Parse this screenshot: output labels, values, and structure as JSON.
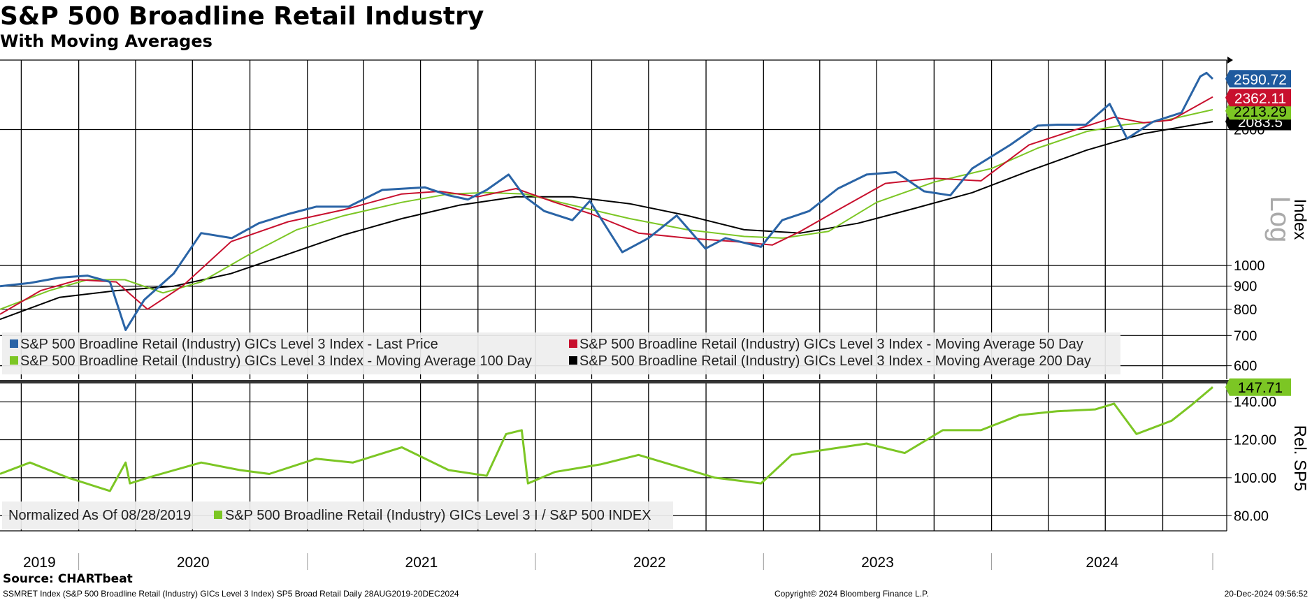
{
  "title": "S&P 500 Broadline Retail Industry",
  "subtitle": "With Moving Averages",
  "source": "Source: CHARTbeat",
  "footer": {
    "left": "SSMRET Index (S&P 500 Broadline Retail (Industry) GICs Level 3 Index) SP5 Broad Retail  Daily 28AUG2019-20DEC2024",
    "center": "Copyright© 2024 Bloomberg Finance L.P.",
    "right": "20-Dec-2024 09:56:52"
  },
  "chart_data": [
    {
      "type": "line",
      "panel": "upper",
      "scale": "log",
      "ylabel": "Index",
      "scale_label": "Log",
      "ylim": [
        560,
        2850
      ],
      "yticks": [
        600,
        700,
        800,
        900,
        1000,
        2000
      ],
      "grid": true,
      "legend_position": "bottom-left",
      "x_range": [
        "2019-08-28",
        "2024-12-20"
      ],
      "x_tick_labels": [
        "2019",
        "2020",
        "2021",
        "2022",
        "2023",
        "2024"
      ],
      "series": [
        {
          "name": "S&P 500 Broadline Retail (Industry) GICs Level 3 Index - Last Price",
          "color": "#2a64a6",
          "last_label": "2590.72",
          "label_color": "#1f5a9e",
          "x": [
            "2019-08-28",
            "2019-10-15",
            "2019-12-01",
            "2020-01-15",
            "2020-02-20",
            "2020-03-16",
            "2020-04-15",
            "2020-06-01",
            "2020-07-15",
            "2020-09-02",
            "2020-10-15",
            "2020-12-01",
            "2021-01-15",
            "2021-03-08",
            "2021-05-01",
            "2021-07-08",
            "2021-08-15",
            "2021-09-15",
            "2021-10-15",
            "2021-11-19",
            "2021-12-15",
            "2022-01-15",
            "2022-03-01",
            "2022-03-29",
            "2022-05-20",
            "2022-07-01",
            "2022-08-15",
            "2022-09-30",
            "2022-11-01",
            "2022-12-28",
            "2023-01-31",
            "2023-03-15",
            "2023-04-30",
            "2023-06-15",
            "2023-08-01",
            "2023-09-15",
            "2023-10-27",
            "2023-12-01",
            "2024-01-31",
            "2024-03-15",
            "2024-04-15",
            "2024-05-31",
            "2024-07-08",
            "2024-08-05",
            "2024-09-15",
            "2024-10-31",
            "2024-11-30",
            "2024-12-10",
            "2024-12-20"
          ],
          "values": [
            900,
            915,
            940,
            950,
            920,
            720,
            840,
            960,
            1180,
            1150,
            1240,
            1300,
            1350,
            1350,
            1470,
            1490,
            1430,
            1400,
            1470,
            1590,
            1420,
            1320,
            1260,
            1390,
            1070,
            1150,
            1290,
            1090,
            1150,
            1100,
            1260,
            1320,
            1480,
            1590,
            1610,
            1460,
            1430,
            1640,
            1850,
            2040,
            2050,
            2050,
            2280,
            1910,
            2080,
            2180,
            2620,
            2670,
            2590
          ]
        },
        {
          "name": "S&P 500 Broadline Retail (Industry) GICs Level 3 Index - Moving Average 50 Day",
          "color": "#c8102e",
          "last_label": "2362.11",
          "label_color": "#c8102e",
          "x": [
            "2019-08-28",
            "2019-11-01",
            "2020-01-01",
            "2020-03-01",
            "2020-04-20",
            "2020-06-15",
            "2020-09-01",
            "2020-12-01",
            "2021-03-01",
            "2021-06-01",
            "2021-08-01",
            "2021-10-01",
            "2021-12-01",
            "2022-02-01",
            "2022-04-01",
            "2022-06-15",
            "2022-09-01",
            "2022-11-15",
            "2023-01-15",
            "2023-03-01",
            "2023-05-01",
            "2023-07-15",
            "2023-10-01",
            "2023-12-15",
            "2024-03-01",
            "2024-05-15",
            "2024-07-15",
            "2024-09-01",
            "2024-10-15",
            "2024-12-20"
          ],
          "values": [
            780,
            880,
            930,
            920,
            800,
            900,
            1130,
            1250,
            1330,
            1440,
            1460,
            1420,
            1480,
            1380,
            1300,
            1180,
            1150,
            1130,
            1110,
            1190,
            1330,
            1520,
            1560,
            1540,
            1850,
            2000,
            2130,
            2070,
            2100,
            2362
          ]
        },
        {
          "name": "S&P 500 Broadline Retail (Industry) GICs Level 3 Index - Moving Average 100 Day",
          "color": "#7cc624",
          "last_label": "2213.29",
          "label_color": "#7cc624",
          "x": [
            "2019-08-28",
            "2019-11-15",
            "2020-01-15",
            "2020-03-15",
            "2020-05-15",
            "2020-07-15",
            "2020-10-01",
            "2020-12-15",
            "2021-03-01",
            "2021-06-01",
            "2021-08-15",
            "2021-10-15",
            "2021-12-15",
            "2022-03-01",
            "2022-06-01",
            "2022-09-01",
            "2022-12-01",
            "2023-02-01",
            "2023-04-15",
            "2023-07-01",
            "2023-10-01",
            "2024-01-01",
            "2024-03-15",
            "2024-06-01",
            "2024-08-01",
            "2024-10-01",
            "2024-12-20"
          ],
          "values": [
            800,
            880,
            930,
            930,
            870,
            920,
            1060,
            1200,
            1290,
            1380,
            1440,
            1450,
            1440,
            1360,
            1270,
            1200,
            1160,
            1150,
            1190,
            1380,
            1530,
            1640,
            1820,
            1980,
            2050,
            2090,
            2213
          ]
        },
        {
          "name": "S&P 500 Broadline Retail (Industry) GICs Level 3 Index - Moving Average 200 Day",
          "color": "#000000",
          "last_label": "2083.5",
          "label_color": "#000000",
          "x": [
            "2019-08-28",
            "2019-12-01",
            "2020-03-01",
            "2020-06-01",
            "2020-09-01",
            "2020-12-01",
            "2021-03-01",
            "2021-06-01",
            "2021-09-01",
            "2021-12-01",
            "2022-03-01",
            "2022-06-01",
            "2022-09-01",
            "2022-12-01",
            "2023-03-01",
            "2023-06-01",
            "2023-09-01",
            "2023-12-01",
            "2024-03-01",
            "2024-06-01",
            "2024-09-01",
            "2024-12-20"
          ],
          "values": [
            760,
            850,
            880,
            900,
            960,
            1060,
            1170,
            1270,
            1360,
            1420,
            1420,
            1370,
            1290,
            1200,
            1180,
            1240,
            1340,
            1450,
            1620,
            1800,
            1960,
            2083
          ]
        }
      ]
    },
    {
      "type": "line",
      "panel": "lower",
      "ylabel": "Rel. SP5",
      "ylim": [
        72,
        150
      ],
      "yticks": [
        80,
        100,
        120,
        140
      ],
      "ytick_labels": [
        "80.00",
        "100.00",
        "120.00",
        "140.00"
      ],
      "grid": true,
      "legend_position": "bottom-left",
      "legend_note": "Normalized As Of 08/28/2019",
      "series": [
        {
          "name": "S&P 500 Broadline Retail (Industry) GICs Level 3 I / S&P 500 INDEX",
          "color": "#7cc624",
          "last_label": "147.71",
          "label_color": "#7cc624",
          "x": [
            "2019-08-28",
            "2019-10-15",
            "2019-12-15",
            "2020-02-20",
            "2020-03-16",
            "2020-03-23",
            "2020-05-01",
            "2020-07-15",
            "2020-09-15",
            "2020-11-01",
            "2021-01-15",
            "2021-03-15",
            "2021-06-01",
            "2021-08-15",
            "2021-10-15",
            "2021-11-15",
            "2021-12-10",
            "2021-12-20",
            "2022-02-01",
            "2022-04-15",
            "2022-06-15",
            "2022-08-15",
            "2022-10-15",
            "2022-12-28",
            "2023-02-15",
            "2023-04-15",
            "2023-06-15",
            "2023-08-15",
            "2023-10-15",
            "2023-12-15",
            "2024-02-15",
            "2024-04-15",
            "2024-06-15",
            "2024-07-15",
            "2024-08-20",
            "2024-10-15",
            "2024-11-15",
            "2024-12-20"
          ],
          "values": [
            102,
            108,
            100,
            93,
            108,
            97,
            101,
            108,
            104,
            102,
            110,
            108,
            116,
            104,
            101,
            123,
            125,
            97,
            103,
            107,
            112,
            106,
            100,
            97,
            112,
            115,
            118,
            113,
            125,
            125,
            133,
            135,
            136,
            139,
            123,
            130,
            138,
            147.71
          ]
        }
      ]
    }
  ]
}
